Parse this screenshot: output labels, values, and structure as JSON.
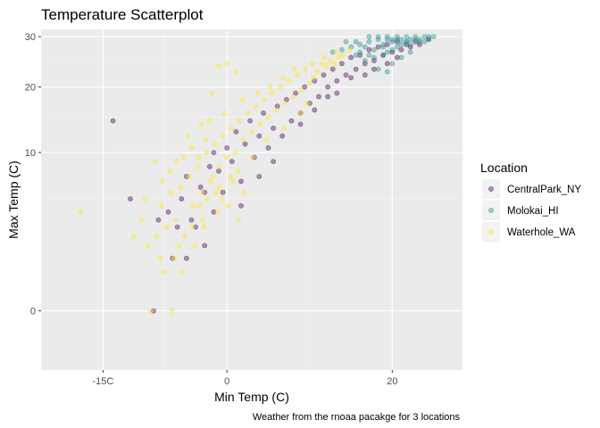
{
  "chart_data": {
    "type": "scatter",
    "title": "Temperature Scatterplot",
    "xlabel": "Min Temp (C)",
    "ylabel": "Max Temp (C)",
    "caption": "Weather from the rnoaa pacakge for 3 locations",
    "x_ticks": [
      {
        "value": -15,
        "label": "-15C"
      },
      {
        "value": 0,
        "label": "0"
      },
      {
        "value": 20,
        "label": "20"
      }
    ],
    "y_ticks": [
      {
        "value": 0,
        "label": "0"
      },
      {
        "value": 10,
        "label": "10"
      },
      {
        "value": 20,
        "label": "20"
      },
      {
        "value": 30,
        "label": "30"
      }
    ],
    "xlim": [
      -22.5,
      28.5
    ],
    "ylim": [
      -1.4,
      31.6
    ],
    "y_scale": "sqrt",
    "grid": true,
    "legend": {
      "title": "Location",
      "position": "right"
    },
    "series": [
      {
        "name": "CentralPark_NY",
        "color": "#440154",
        "points": [
          [
            -13.8,
            14.4
          ],
          [
            -11.7,
            5.0
          ],
          [
            -8.9,
            0.0
          ],
          [
            -8.3,
            3.3
          ],
          [
            -7.1,
            3.9
          ],
          [
            -6.6,
            1.1
          ],
          [
            -6.0,
            2.8
          ],
          [
            -5.5,
            5.0
          ],
          [
            -4.9,
            7.2
          ],
          [
            -4.3,
            3.3
          ],
          [
            -3.8,
            2.8
          ],
          [
            -3.2,
            6.1
          ],
          [
            -2.7,
            5.6
          ],
          [
            -2.1,
            8.3
          ],
          [
            -1.6,
            10.0
          ],
          [
            -1.0,
            7.8
          ],
          [
            -0.5,
            5.6
          ],
          [
            0.0,
            10.6
          ],
          [
            0.6,
            8.9
          ],
          [
            1.1,
            12.8
          ],
          [
            1.7,
            6.7
          ],
          [
            2.2,
            11.1
          ],
          [
            2.8,
            14.4
          ],
          [
            3.3,
            9.4
          ],
          [
            3.9,
            12.2
          ],
          [
            4.4,
            15.6
          ],
          [
            5.0,
            10.6
          ],
          [
            5.6,
            13.3
          ],
          [
            6.1,
            16.7
          ],
          [
            6.7,
            12.2
          ],
          [
            7.2,
            17.8
          ],
          [
            7.8,
            14.4
          ],
          [
            8.3,
            18.9
          ],
          [
            8.9,
            15.6
          ],
          [
            9.4,
            20.0
          ],
          [
            10.0,
            17.2
          ],
          [
            10.6,
            21.1
          ],
          [
            11.1,
            18.3
          ],
          [
            11.7,
            22.2
          ],
          [
            12.2,
            20.0
          ],
          [
            12.8,
            23.3
          ],
          [
            13.3,
            21.1
          ],
          [
            13.9,
            24.4
          ],
          [
            14.4,
            22.2
          ],
          [
            15.0,
            25.6
          ],
          [
            15.6,
            23.3
          ],
          [
            16.1,
            26.1
          ],
          [
            16.7,
            24.4
          ],
          [
            17.2,
            27.2
          ],
          [
            17.8,
            25.0
          ],
          [
            18.3,
            27.8
          ],
          [
            18.9,
            26.1
          ],
          [
            19.4,
            28.3
          ],
          [
            20.0,
            26.7
          ],
          [
            20.6,
            28.9
          ],
          [
            21.1,
            27.2
          ],
          [
            21.7,
            28.3
          ],
          [
            22.2,
            27.8
          ],
          [
            22.8,
            28.9
          ],
          [
            23.3,
            28.3
          ],
          [
            24.4,
            29.4
          ],
          [
            10.6,
            16.1
          ],
          [
            12.2,
            18.3
          ],
          [
            8.9,
            13.9
          ],
          [
            5.6,
            8.9
          ],
          [
            3.9,
            7.2
          ],
          [
            1.7,
            4.4
          ],
          [
            -2.7,
            1.7
          ],
          [
            -4.9,
            1.1
          ],
          [
            -1.6,
            3.9
          ],
          [
            16.7,
            22.2
          ],
          [
            15.0,
            21.7
          ],
          [
            13.3,
            18.9
          ],
          [
            17.8,
            23.3
          ],
          [
            19.4,
            24.4
          ],
          [
            20.6,
            25.6
          ]
        ]
      },
      {
        "name": "Molokai_HI",
        "color": "#21908c",
        "points": [
          [
            12.8,
            26.7
          ],
          [
            13.9,
            27.2
          ],
          [
            15.0,
            27.8
          ],
          [
            15.6,
            26.1
          ],
          [
            16.1,
            28.3
          ],
          [
            16.7,
            27.8
          ],
          [
            17.2,
            28.9
          ],
          [
            17.8,
            27.2
          ],
          [
            18.3,
            29.4
          ],
          [
            18.9,
            28.3
          ],
          [
            19.4,
            29.4
          ],
          [
            20.0,
            28.9
          ],
          [
            20.6,
            30.0
          ],
          [
            21.1,
            29.4
          ],
          [
            21.7,
            30.0
          ],
          [
            22.2,
            29.4
          ],
          [
            22.8,
            30.0
          ],
          [
            23.3,
            29.4
          ],
          [
            23.9,
            30.0
          ],
          [
            24.4,
            29.4
          ],
          [
            25.0,
            30.0
          ],
          [
            16.7,
            25.0
          ],
          [
            17.8,
            25.6
          ],
          [
            18.9,
            26.1
          ],
          [
            19.4,
            26.7
          ],
          [
            20.0,
            27.2
          ],
          [
            20.6,
            27.8
          ],
          [
            21.1,
            28.3
          ],
          [
            21.7,
            28.9
          ],
          [
            22.2,
            28.3
          ],
          [
            23.3,
            28.9
          ],
          [
            18.3,
            23.3
          ],
          [
            19.4,
            22.8
          ],
          [
            20.0,
            24.4
          ],
          [
            21.1,
            25.6
          ],
          [
            22.2,
            26.7
          ],
          [
            14.4,
            28.9
          ],
          [
            15.6,
            28.9
          ],
          [
            17.2,
            30.0
          ],
          [
            18.3,
            30.0
          ],
          [
            19.4,
            30.0
          ],
          [
            20.6,
            29.4
          ],
          [
            21.7,
            28.9
          ],
          [
            24.4,
            30.0
          ],
          [
            16.1,
            26.7
          ],
          [
            17.2,
            26.1
          ],
          [
            18.9,
            27.8
          ],
          [
            20.0,
            29.4
          ],
          [
            22.8,
            29.4
          ],
          [
            23.9,
            28.9
          ]
        ]
      },
      {
        "name": "Waterhole_WA",
        "color": "#fde725",
        "points": [
          [
            -17.7,
            3.9
          ],
          [
            -9.6,
            1.7
          ],
          [
            -9.2,
            0.0
          ],
          [
            -8.5,
            2.2
          ],
          [
            -7.9,
            4.4
          ],
          [
            -7.3,
            2.8
          ],
          [
            -6.8,
            5.6
          ],
          [
            -6.2,
            3.3
          ],
          [
            -5.6,
            6.1
          ],
          [
            -5.1,
            2.2
          ],
          [
            -4.6,
            7.2
          ],
          [
            -4.1,
            4.4
          ],
          [
            -3.5,
            8.3
          ],
          [
            -3.0,
            5.6
          ],
          [
            -2.5,
            10.0
          ],
          [
            -2.0,
            6.7
          ],
          [
            -1.5,
            11.1
          ],
          [
            -1.0,
            8.3
          ],
          [
            -0.5,
            12.2
          ],
          [
            0.0,
            9.4
          ],
          [
            0.5,
            13.3
          ],
          [
            1.0,
            10.0
          ],
          [
            1.5,
            14.4
          ],
          [
            2.0,
            11.7
          ],
          [
            2.5,
            15.6
          ],
          [
            3.0,
            12.8
          ],
          [
            3.5,
            16.7
          ],
          [
            4.0,
            13.9
          ],
          [
            4.5,
            17.8
          ],
          [
            5.0,
            15.0
          ],
          [
            5.5,
            18.9
          ],
          [
            6.0,
            16.1
          ],
          [
            6.5,
            20.0
          ],
          [
            7.0,
            17.2
          ],
          [
            7.5,
            21.1
          ],
          [
            8.0,
            18.3
          ],
          [
            8.5,
            22.2
          ],
          [
            9.0,
            19.4
          ],
          [
            9.5,
            23.3
          ],
          [
            10.0,
            20.6
          ],
          [
            10.5,
            21.7
          ],
          [
            11.0,
            22.8
          ],
          [
            11.5,
            24.4
          ],
          [
            12.0,
            23.9
          ],
          [
            12.5,
            25.0
          ],
          [
            13.0,
            24.4
          ],
          [
            13.5,
            25.6
          ],
          [
            14.0,
            26.1
          ],
          [
            -1.8,
            18.9
          ],
          [
            -1.0,
            23.9
          ],
          [
            0.0,
            24.4
          ],
          [
            1.0,
            22.8
          ],
          [
            -8.7,
            8.9
          ],
          [
            -7.8,
            6.7
          ],
          [
            -6.9,
            7.8
          ],
          [
            -6.1,
            8.9
          ],
          [
            -5.2,
            9.4
          ],
          [
            -4.3,
            10.6
          ],
          [
            -3.4,
            9.4
          ],
          [
            -2.6,
            11.7
          ],
          [
            -1.7,
            7.2
          ],
          [
            -0.9,
            6.1
          ],
          [
            0.8,
            6.7
          ],
          [
            2.1,
            5.6
          ],
          [
            -6.4,
            1.1
          ],
          [
            -5.5,
            0.6
          ],
          [
            -3.9,
            1.7
          ],
          [
            -2.8,
            2.8
          ],
          [
            -1.1,
            3.9
          ],
          [
            0.2,
            4.4
          ],
          [
            1.4,
            3.3
          ],
          [
            -7.6,
            0.6
          ],
          [
            -10.4,
            3.3
          ],
          [
            -11.3,
            2.2
          ],
          [
            -9.9,
            5.0
          ],
          [
            -4.8,
            12.2
          ],
          [
            -3.1,
            13.9
          ],
          [
            -2.2,
            14.4
          ],
          [
            -0.3,
            15.6
          ],
          [
            1.9,
            17.8
          ],
          [
            3.7,
            18.9
          ],
          [
            5.2,
            20.0
          ],
          [
            6.8,
            21.7
          ],
          [
            8.2,
            23.3
          ],
          [
            10.3,
            24.4
          ],
          [
            11.8,
            25.6
          ],
          [
            13.2,
            26.7
          ],
          [
            14.8,
            27.2
          ],
          [
            9.7,
            17.2
          ],
          [
            8.9,
            15.6
          ],
          [
            6.9,
            13.3
          ],
          [
            4.8,
            11.7
          ],
          [
            3.1,
            9.4
          ],
          [
            1.3,
            7.8
          ],
          [
            -0.6,
            5.0
          ],
          [
            -2.9,
            3.3
          ],
          [
            -8.1,
            1.1
          ],
          [
            -6.7,
            0.0
          ],
          [
            -5.8,
            1.7
          ],
          [
            -4.2,
            2.8
          ],
          [
            -3.3,
            4.4
          ],
          [
            -2.4,
            5.0
          ],
          [
            -1.3,
            5.6
          ],
          [
            0.4,
            7.2
          ]
        ]
      }
    ]
  }
}
